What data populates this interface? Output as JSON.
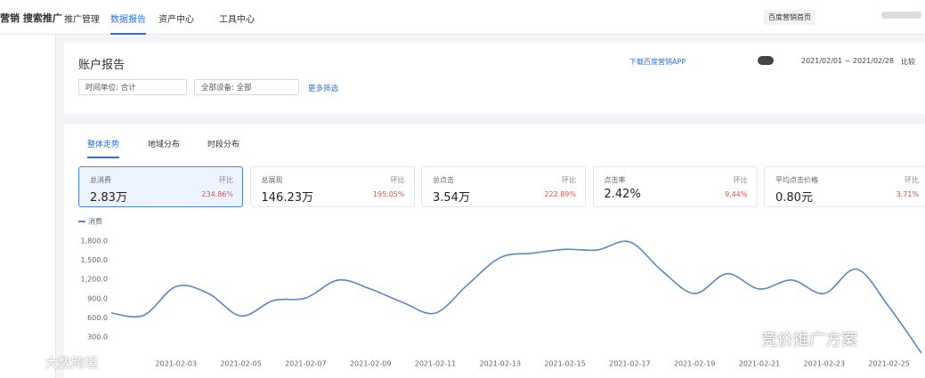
{
  "header": {
    "brand": "营销 搜索推广",
    "nav": [
      "推广管理",
      "数据报告",
      "资产中心",
      "工具中心"
    ],
    "home_link": "百度营销首页"
  },
  "report": {
    "title": "账户报告",
    "app_link": "下载百度营销APP",
    "date_range": "2021/02/01 ~ 2021/02/28",
    "compare": "比较",
    "filters": [
      "时间单位: 合计",
      "全部设备: 全部"
    ],
    "more_filters": "更多筛选"
  },
  "tabs": [
    "整体走势",
    "地域分布",
    "时段分布"
  ],
  "cards": [
    {
      "label": "总消费",
      "value": "2.83万",
      "change_label": "环比",
      "change": "234.86%"
    },
    {
      "label": "总展现",
      "value": "146.23万",
      "change_label": "环比",
      "change": "195.05%"
    },
    {
      "label": "总点击",
      "value": "3.54万",
      "change_label": "环比",
      "change": "222.89%"
    },
    {
      "label": "点击率",
      "value": "2.42%",
      "change_label": "环比",
      "change": "9.44%"
    },
    {
      "label": "平均点击价格",
      "value": "0.80元",
      "change_label": "环比",
      "change": "3.71%"
    }
  ],
  "watermarks": [
    "大数跨境",
    "竞价推广方案"
  ],
  "chart_data": {
    "type": "line",
    "categories": [
      null,
      null,
      "2021-02-03",
      null,
      "2021-02-05",
      null,
      "2021-02-07",
      null,
      "2021-02-09",
      null,
      "2021-02-11",
      null,
      "2021-02-13",
      null,
      "2021-02-15",
      null,
      "2021-02-17",
      null,
      "2021-02-19",
      null,
      "2021-02-21",
      null,
      "2021-02-23",
      null,
      "2021-02-25",
      null
    ],
    "series": [
      {
        "name": "消费",
        "color": "#5b86c5",
        "values": [
          675,
          640,
          1090,
          980,
          630,
          870,
          910,
          1190,
          1050,
          840,
          675,
          1120,
          1540,
          1610,
          1670,
          1660,
          1785,
          1330,
          980,
          1290,
          1050,
          1190,
          980,
          1360,
          770,
          50
        ]
      }
    ],
    "ylim": [
      0,
      1980
    ],
    "yticks": [
      {
        "value": 300,
        "label": "300.0"
      },
      {
        "value": 600,
        "label": "600.0"
      },
      {
        "value": 900,
        "label": "900.0"
      },
      {
        "value": 1200,
        "label": "1,200.0"
      },
      {
        "value": 1500,
        "label": "1,500.0"
      },
      {
        "value": 1800,
        "label": "1,800.0"
      }
    ],
    "grid": false
  }
}
